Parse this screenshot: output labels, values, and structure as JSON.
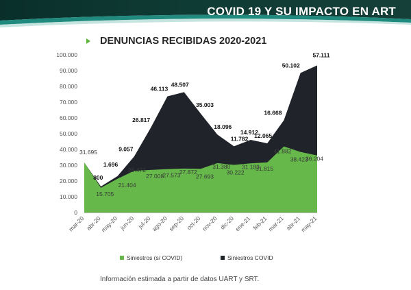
{
  "header": {
    "title": "COVID 19 Y SU IMPACTO EN ART"
  },
  "source_note": "Información estimada a partir de datos UART y SRT.",
  "colors": {
    "covid": "#21232a",
    "non_covid": "#66b84b",
    "header_dark": "#0f3b35",
    "header_teal": "#1f8a7d"
  },
  "chart_data": {
    "type": "area",
    "stacked": true,
    "title": "DENUNCIAS RECIBIDAS 2020-2021",
    "categories": [
      "mar-20",
      "abr-20",
      "may-20",
      "jun-20",
      "jul-20",
      "ago-20",
      "sep-20",
      "oct-20",
      "nov-20",
      "dic-20",
      "ene-21",
      "feb-21",
      "mar-21",
      "abr-21",
      "may-21"
    ],
    "series": [
      {
        "name": "Siniestros (s/ COVID)",
        "values": [
          31695,
          15705,
          21404,
          26472,
          27008,
          27573,
          27872,
          27693,
          31380,
          30222,
          31183,
          31815,
          41882,
          38423,
          36204
        ],
        "labels": [
          "31.695",
          "15.705",
          "21.404",
          "26.472",
          "27.008",
          "27.573",
          "27.872",
          "27.693",
          "31.380",
          "30.222",
          "31.183",
          "31.815",
          "41.882",
          "38.423",
          "36.204"
        ]
      },
      {
        "name": "Siniestros COVID",
        "values": [
          0,
          800,
          1696,
          9057,
          26817,
          46113,
          48507,
          35003,
          18096,
          11782,
          14912,
          12065,
          16668,
          50102,
          57111
        ],
        "labels": [
          "",
          "800",
          "1.696",
          "9.057",
          "26.817",
          "46.113",
          "48.507",
          "35.003",
          "18.096",
          "11.782",
          "14.912",
          "12.065",
          "16.668",
          "50.102",
          "57.111"
        ]
      }
    ],
    "ylim": [
      0,
      100000
    ],
    "yticks": [
      0,
      10000,
      20000,
      30000,
      40000,
      50000,
      60000,
      70000,
      80000,
      90000,
      100000
    ],
    "ytick_labels": [
      "0",
      "10.000",
      "20.000",
      "30.000",
      "40.000",
      "50.000",
      "60.000",
      "70.000",
      "80.000",
      "90.000",
      "100.000"
    ],
    "xlabel": "",
    "ylabel": "",
    "grid": false,
    "legend": "bottom"
  }
}
